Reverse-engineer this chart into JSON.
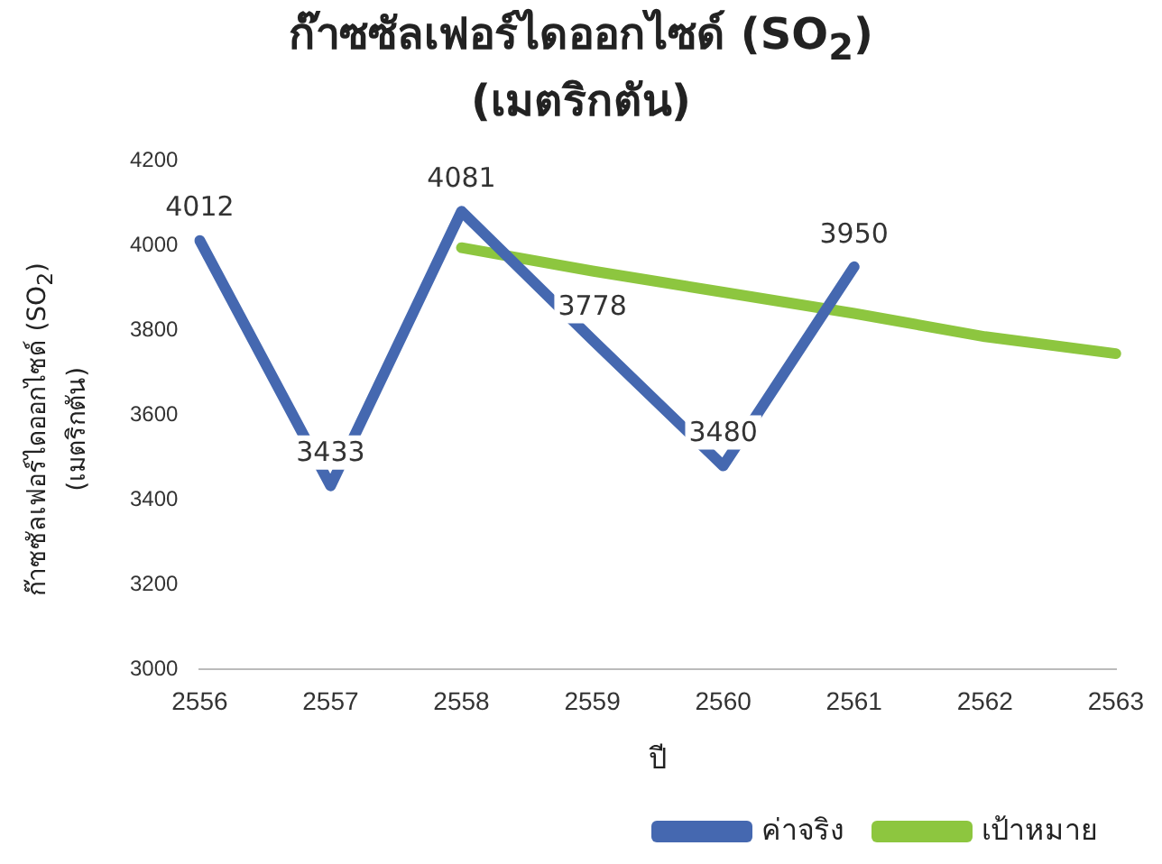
{
  "chart_data": {
    "type": "line",
    "title": "ก๊าซซัลเฟอร์ไดออกไซด์ (SO$_{2}$)\n(เมตริกตัน)",
    "xlabel": "ปี",
    "ylabel": "ก๊าซซัลเฟอร์ไดออกไซด์ (SO$_{2}$)\n(เมตริกตัน)",
    "categories": [
      "2556",
      "2557",
      "2558",
      "2559",
      "2560",
      "2561",
      "2562",
      "2563"
    ],
    "series": [
      {
        "name": "ค่าจริง",
        "color": "#4568b0",
        "values": [
          4012,
          3433,
          4081,
          3778,
          3480,
          3950,
          null,
          null
        ],
        "value_labels": [
          "4012",
          "3433",
          "4081",
          "3778",
          "3480",
          "3950",
          null,
          null
        ]
      },
      {
        "name": "เป้าหมาย",
        "color": "#8dc63f",
        "values": [
          null,
          null,
          3995,
          3940,
          3890,
          3840,
          3785,
          3745
        ]
      }
    ],
    "ylim": [
      3000,
      4200
    ],
    "yticks": [
      3000,
      3200,
      3400,
      3600,
      3800,
      4000,
      4200
    ],
    "grid": false,
    "legend": "bottom right",
    "marker": "none",
    "line_style": "solid"
  }
}
